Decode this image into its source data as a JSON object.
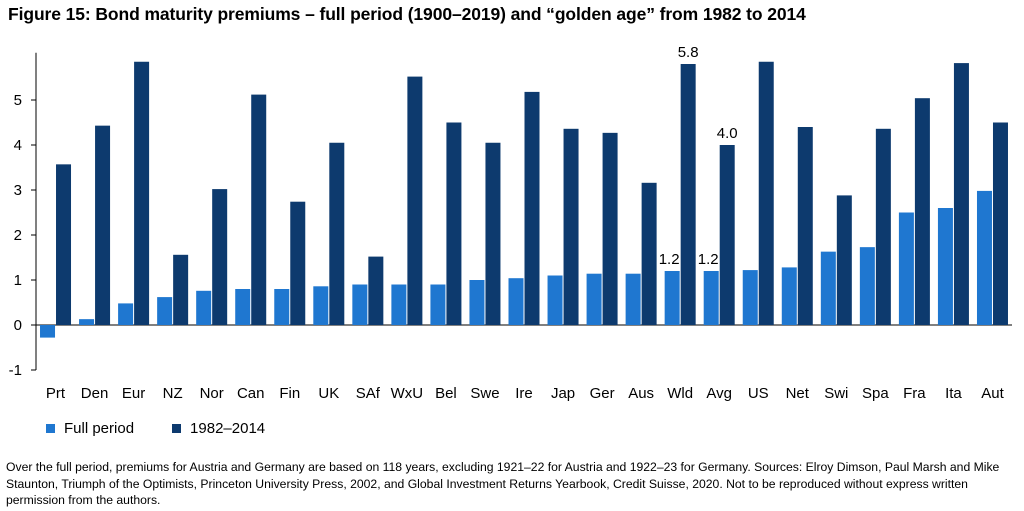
{
  "title": "Figure 15: Bond maturity premiums – full period (1900–2019) and “golden age” from 1982 to 2014",
  "footnote": "Over the full period, premiums for Austria and Germany are based on 118 years, excluding 1921–22 for Austria and 1922–23 for Germany.  Sources: Elroy Dimson, Paul Marsh and Mike Staunton, Triumph of the Optimists, Princeton University Press, 2002, and Global Investment Returns Yearbook, Credit Suisse, 2020. Not to be reproduced without express written permission from the authors.",
  "colors": {
    "full": "#1f77d0",
    "golden": "#0d3a6e",
    "axis": "#000000"
  },
  "chart_data": {
    "type": "bar",
    "categories": [
      "Prt",
      "Den",
      "Eur",
      "NZ",
      "Nor",
      "Can",
      "Fin",
      "UK",
      "SAf",
      "WxU",
      "Bel",
      "Swe",
      "Ire",
      "Jap",
      "Ger",
      "Aus",
      "Wld",
      "Avg",
      "US",
      "Net",
      "Swi",
      "Spa",
      "Fra",
      "Ita",
      "Aut"
    ],
    "series": [
      {
        "name": "Full period",
        "values": [
          -0.28,
          0.13,
          0.48,
          0.62,
          0.76,
          0.8,
          0.8,
          0.86,
          0.9,
          0.9,
          0.9,
          1.0,
          1.04,
          1.1,
          1.14,
          1.14,
          1.2,
          1.2,
          1.22,
          1.28,
          1.63,
          1.73,
          2.5,
          2.6,
          2.98
        ]
      },
      {
        "name": "1982–2014",
        "values": [
          3.57,
          4.43,
          5.85,
          1.56,
          3.02,
          5.12,
          2.74,
          4.05,
          1.52,
          5.52,
          4.5,
          4.05,
          5.18,
          4.36,
          4.27,
          3.16,
          5.8,
          4.0,
          5.85,
          4.4,
          2.88,
          4.36,
          5.04,
          5.82,
          4.5
        ]
      }
    ],
    "data_labels": [
      {
        "category": "Wld",
        "series": "Full period",
        "text": "1.2"
      },
      {
        "category": "Avg",
        "series": "Full period",
        "text": "1.2"
      },
      {
        "category": "Wld",
        "series": "1982–2014",
        "text": "5.8"
      },
      {
        "category": "Avg",
        "series": "1982–2014",
        "text": "4.0"
      }
    ],
    "yticks": [
      -1,
      0,
      1,
      2,
      3,
      4,
      5
    ],
    "ylim": [
      -1,
      6.05
    ],
    "grid": false,
    "legend": "bottom-left"
  }
}
